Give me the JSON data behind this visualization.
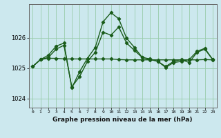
{
  "title": "Graphe pression niveau de la mer (hPa)",
  "background_color": "#cce8ee",
  "grid_color": "#99ccaa",
  "line_color": "#1a5c1a",
  "xlim": [
    -0.5,
    23.5
  ],
  "ylim": [
    1023.7,
    1027.1
  ],
  "yticks": [
    1024,
    1025,
    1026
  ],
  "xticks": [
    0,
    1,
    2,
    3,
    4,
    5,
    6,
    7,
    8,
    9,
    10,
    11,
    12,
    13,
    14,
    15,
    16,
    17,
    18,
    19,
    20,
    21,
    22,
    23
  ],
  "hours": [
    0,
    1,
    2,
    3,
    4,
    5,
    6,
    7,
    8,
    9,
    10,
    11,
    12,
    13,
    14,
    15,
    16,
    17,
    18,
    19,
    20,
    21,
    22,
    23
  ],
  "pressure1": [
    1025.05,
    1025.28,
    1025.32,
    1025.32,
    1025.3,
    1025.3,
    1025.3,
    1025.3,
    1025.3,
    1025.3,
    1025.3,
    1025.28,
    1025.27,
    1025.27,
    1025.27,
    1025.27,
    1025.27,
    1025.27,
    1025.27,
    1025.27,
    1025.27,
    1025.27,
    1025.28,
    1025.27
  ],
  "pressure2": [
    1025.05,
    1025.28,
    1025.35,
    1025.62,
    1025.75,
    1024.38,
    1024.72,
    1025.22,
    1025.52,
    1026.18,
    1026.08,
    1026.35,
    1025.82,
    1025.58,
    1025.35,
    1025.3,
    1025.22,
    1025.05,
    1025.22,
    1025.28,
    1025.18,
    1025.52,
    1025.62,
    1025.28
  ],
  "pressure3": [
    1025.05,
    1025.28,
    1025.42,
    1025.72,
    1025.82,
    1024.35,
    1024.88,
    1025.32,
    1025.68,
    1026.52,
    1026.82,
    1026.62,
    1025.98,
    1025.68,
    1025.35,
    1025.28,
    1025.22,
    1025.02,
    1025.18,
    1025.22,
    1025.28,
    1025.55,
    1025.65,
    1025.28
  ]
}
